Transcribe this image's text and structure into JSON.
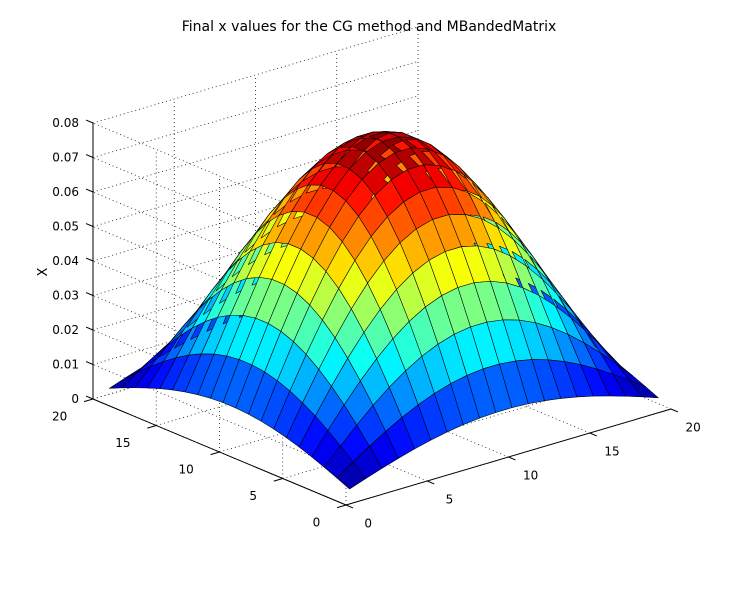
{
  "chart_data": {
    "type": "surface",
    "title": "Final x values for the CG method and MBandedMatrix",
    "xlabel": "",
    "ylabel": "",
    "zlabel": "X",
    "x_range": [
      0,
      20
    ],
    "y_range": [
      0,
      20
    ],
    "z_range": [
      0,
      0.08
    ],
    "x_ticks": [
      "0",
      "5",
      "10",
      "15",
      "20"
    ],
    "y_ticks": [
      "0",
      "5",
      "10",
      "15",
      "20"
    ],
    "z_ticks": [
      "0",
      "0.01",
      "0.02",
      "0.03",
      "0.04",
      "0.05",
      "0.06",
      "0.07",
      "0.08"
    ],
    "grid": true,
    "colormap": "jet",
    "mesh_size": 20,
    "peak_value": 0.0765,
    "edge_value": 0.0052,
    "function": "separable sine-shaped bump: z = peak * sin(pi*x/21) * sin(pi*y/21) over a 20x20 grid"
  }
}
